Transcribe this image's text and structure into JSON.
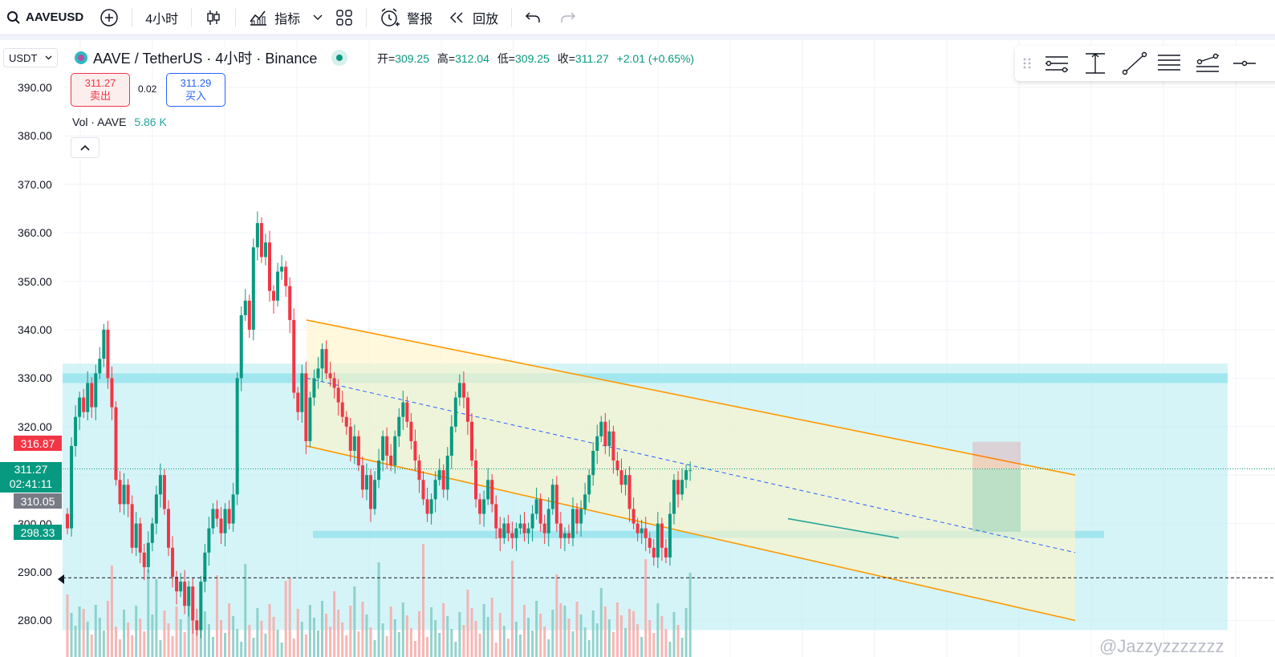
{
  "toolbar": {
    "symbol": "AAVEUSD",
    "interval": "4小时",
    "indicators_label": "指标",
    "alert_label": "警报",
    "replay_label": "回放"
  },
  "quote_select": "USDT",
  "legend": {
    "title": "AAVE / TetherUS · 4小时 · Binance",
    "open_label": "开=",
    "open": "309.25",
    "high_label": "高=",
    "high": "312.04",
    "low_label": "低=",
    "low": "309.25",
    "close_label": "收=",
    "close": "311.27",
    "change": "+2.01 (+0.65%)"
  },
  "trade": {
    "sell_price": "311.27",
    "sell_label": "卖出",
    "spread": "0.02",
    "buy_price": "311.29",
    "buy_label": "买入"
  },
  "volume_legend": {
    "label": "Vol · AAVE",
    "value": "5.86 K"
  },
  "price_tags": {
    "high_level": "316.87",
    "last": "311.27",
    "countdown": "02:41:11",
    "prev": "310.05",
    "support": "298.33"
  },
  "watermark": "@Jazzyzzzzzzz",
  "colors": {
    "up": "#089981",
    "down": "#f23645",
    "channel": "#ff9800",
    "zone": "#b2ebf2"
  },
  "chart_data": {
    "type": "candlestick",
    "y_ticks": [
      390,
      380,
      370,
      360,
      350,
      340,
      330,
      320,
      310,
      300,
      290,
      280
    ],
    "ylim": [
      277,
      395
    ],
    "grid": true,
    "candles": [
      [
        302,
        299
      ],
      [
        299,
        316
      ],
      [
        316,
        322
      ],
      [
        322,
        326
      ],
      [
        326,
        323
      ],
      [
        323,
        329
      ],
      [
        329,
        324
      ],
      [
        324,
        331
      ],
      [
        331,
        334
      ],
      [
        334,
        340
      ],
      [
        340,
        330
      ],
      [
        330,
        324
      ],
      [
        324,
        309
      ],
      [
        309,
        304
      ],
      [
        304,
        308
      ],
      [
        308,
        304
      ],
      [
        304,
        295
      ],
      [
        295,
        300
      ],
      [
        300,
        294
      ],
      [
        294,
        291
      ],
      [
        291,
        296
      ],
      [
        296,
        300
      ],
      [
        300,
        306
      ],
      [
        306,
        310
      ],
      [
        310,
        303
      ],
      [
        303,
        295
      ],
      [
        295,
        289
      ],
      [
        289,
        286
      ],
      [
        286,
        288
      ],
      [
        288,
        283
      ],
      [
        283,
        287
      ],
      [
        287,
        280
      ],
      [
        280,
        278
      ],
      [
        278,
        288
      ],
      [
        288,
        294
      ],
      [
        294,
        299
      ],
      [
        299,
        303
      ],
      [
        303,
        301
      ],
      [
        301,
        298
      ],
      [
        298,
        303
      ],
      [
        303,
        300
      ],
      [
        300,
        306
      ],
      [
        306,
        330
      ],
      [
        330,
        343
      ],
      [
        343,
        346
      ],
      [
        346,
        340
      ],
      [
        340,
        357
      ],
      [
        357,
        362
      ],
      [
        362,
        355
      ],
      [
        355,
        358
      ],
      [
        358,
        348
      ],
      [
        348,
        346
      ],
      [
        346,
        352
      ],
      [
        352,
        353
      ],
      [
        353,
        349
      ],
      [
        349,
        342
      ],
      [
        342,
        327
      ],
      [
        327,
        323
      ],
      [
        323,
        331
      ],
      [
        331,
        317
      ],
      [
        317,
        326
      ],
      [
        326,
        330
      ],
      [
        330,
        332
      ],
      [
        332,
        336
      ],
      [
        336,
        331
      ],
      [
        331,
        330
      ],
      [
        330,
        328
      ],
      [
        328,
        325
      ],
      [
        325,
        322
      ],
      [
        322,
        320
      ],
      [
        320,
        315
      ],
      [
        315,
        318
      ],
      [
        318,
        312
      ],
      [
        312,
        307
      ],
      [
        307,
        310
      ],
      [
        310,
        303
      ],
      [
        303,
        309
      ],
      [
        309,
        313
      ],
      [
        313,
        318
      ],
      [
        318,
        314
      ],
      [
        314,
        312
      ],
      [
        312,
        318
      ],
      [
        318,
        322
      ],
      [
        322,
        325
      ],
      [
        325,
        321
      ],
      [
        321,
        317
      ],
      [
        317,
        313
      ],
      [
        313,
        309
      ],
      [
        309,
        305
      ],
      [
        305,
        302
      ],
      [
        302,
        305
      ],
      [
        305,
        309
      ],
      [
        309,
        311
      ],
      [
        311,
        307
      ],
      [
        307,
        314
      ],
      [
        314,
        320
      ],
      [
        320,
        326
      ],
      [
        326,
        329
      ],
      [
        329,
        326
      ],
      [
        326,
        321
      ],
      [
        321,
        313
      ],
      [
        313,
        305
      ],
      [
        305,
        302
      ],
      [
        302,
        305
      ],
      [
        305,
        309
      ],
      [
        309,
        304
      ],
      [
        304,
        299
      ],
      [
        299,
        297
      ],
      [
        297,
        300
      ],
      [
        300,
        298
      ],
      [
        298,
        297
      ],
      [
        297,
        299
      ],
      [
        299,
        300
      ],
      [
        300,
        298
      ],
      [
        298,
        299
      ],
      [
        299,
        302
      ],
      [
        302,
        305
      ],
      [
        305,
        300
      ],
      [
        300,
        298
      ],
      [
        298,
        303
      ],
      [
        303,
        308
      ],
      [
        308,
        300
      ],
      [
        300,
        297
      ],
      [
        297,
        298
      ],
      [
        298,
        297
      ],
      [
        297,
        303
      ],
      [
        303,
        300
      ],
      [
        300,
        303
      ],
      [
        303,
        306
      ],
      [
        306,
        310
      ],
      [
        310,
        315
      ],
      [
        315,
        318
      ],
      [
        318,
        321
      ],
      [
        321,
        316
      ],
      [
        316,
        319
      ],
      [
        319,
        313
      ],
      [
        313,
        311
      ],
      [
        311,
        308
      ],
      [
        308,
        310
      ],
      [
        310,
        303
      ],
      [
        303,
        300
      ],
      [
        300,
        298
      ],
      [
        298,
        299
      ],
      [
        299,
        297
      ],
      [
        297,
        295
      ],
      [
        295,
        293
      ],
      [
        293,
        300
      ],
      [
        300,
        295
      ],
      [
        295,
        293
      ],
      [
        293,
        302
      ],
      [
        302,
        309
      ],
      [
        309,
        306
      ],
      [
        306,
        309
      ],
      [
        309,
        311
      ],
      [
        311,
        311
      ]
    ],
    "volume_max_ratio": 0.26,
    "channel": {
      "upper": [
        [
          0,
          342
        ],
        [
          1,
          310
        ]
      ],
      "lower": [
        [
          0,
          316
        ],
        [
          1,
          280
        ]
      ],
      "mid": [
        [
          0,
          330
        ],
        [
          1,
          294
        ]
      ]
    },
    "zones": [
      {
        "from": 278,
        "to": 333
      },
      {
        "from": 329,
        "to": 331
      },
      {
        "from": 297,
        "to": 298.5
      }
    ],
    "dashed_level": 288.8
  }
}
